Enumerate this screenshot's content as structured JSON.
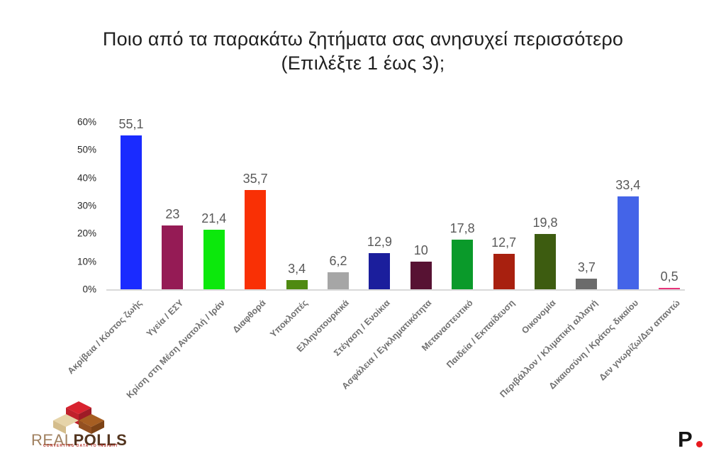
{
  "title": {
    "line1": "Ποιο από τα παρακάτω ζητήματα σας ανησυχεί περισσότερο",
    "line2": "(Επιλέξτε 1 έως 3);"
  },
  "chart_data": {
    "type": "bar",
    "title": "Ποιο από τα παρακάτω ζητήματα σας ανησυχεί περισσότερο (Επιλέξτε 1 έως 3);",
    "categories": [
      "Ακρίβεια / Κόστος ζωής",
      "Υγεία / ΕΣΥ",
      "Κρίση στη Μέση Ανατολή / Ιράν",
      "Διαφθορά",
      "Υποκλοπές",
      "Ελληνοτουρκικά",
      "Στέγαση / Ενοίκια",
      "Ασφάλεια / Εγκληματικότητα",
      "Μεταναστευτικό",
      "Παιδεία / Εκπαίδευση",
      "Οικονομία",
      "Περιβάλλον / Κλιματική αλλαγή",
      "Δικαιοσύνη / Κράτος δικαίου",
      "Δεν γνωρίζω/Δεν απαντώ"
    ],
    "values": [
      55.1,
      23,
      21.4,
      35.7,
      3.4,
      6.2,
      12.9,
      10,
      17.8,
      12.7,
      19.8,
      3.7,
      33.4,
      0.5
    ],
    "value_labels": [
      "55,1",
      "23",
      "21,4",
      "35,7",
      "3,4",
      "6,2",
      "12,9",
      "10",
      "17,8",
      "12,7",
      "19,8",
      "3,7",
      "33,4",
      "0,5"
    ],
    "bar_colors": [
      "#1a2bff",
      "#951b55",
      "#0ce80c",
      "#f93005",
      "#4f8a11",
      "#a6a6a6",
      "#1b1e9c",
      "#571233",
      "#0a9a2a",
      "#a8200f",
      "#3d5c10",
      "#6b6b6b",
      "#4464e8",
      "#e8337a"
    ],
    "ytick_labels": [
      "0%",
      "10%",
      "20%",
      "30%",
      "40%",
      "50%",
      "60%"
    ],
    "xlabel": "",
    "ylabel": "",
    "ylim": [
      0,
      60
    ],
    "grid": false,
    "legend": false
  },
  "footer": {
    "left_logo": {
      "text_light": "REAL",
      "text_bold": "POLLS",
      "tagline": "CONVERTING DATA TO INSIGHT",
      "cube_red": "#cf2130",
      "cube_red_dark": "#9e1b26",
      "cube_beige": "#e6d4a9",
      "cube_brown": "#a65e22",
      "cube_brown_dark": "#7d4316"
    },
    "right_logo": {
      "letter": "P",
      "dot_color": "#e8191e"
    }
  }
}
